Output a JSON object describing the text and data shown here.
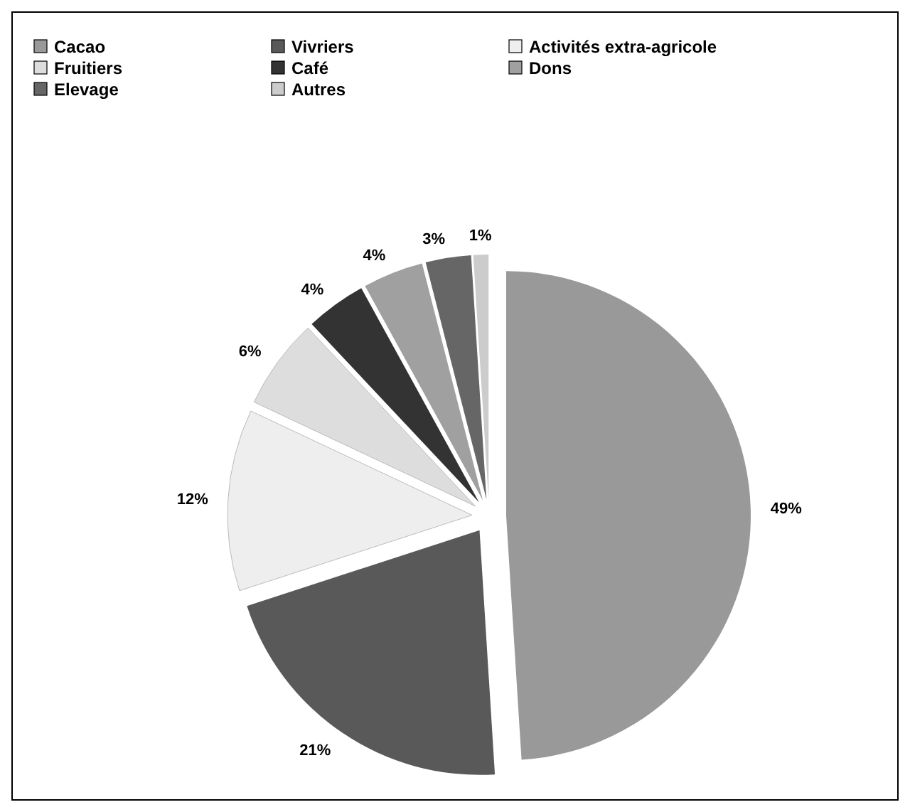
{
  "chart_data": {
    "type": "pie",
    "categories": [
      "Cacao",
      "Vivriers",
      "Activités extra-agricole",
      "Fruitiers",
      "Café",
      "Dons",
      "Elevage",
      "Autres"
    ],
    "values": [
      49,
      21,
      12,
      6,
      4,
      4,
      3,
      1
    ],
    "colors": [
      "#999999",
      "#595959",
      "#eeeeee",
      "#dddddd",
      "#333333",
      "#a0a0a0",
      "#666666",
      "#cccccc"
    ],
    "value_labels": [
      "49%",
      "21%",
      "12%",
      "6%",
      "4%",
      "4%",
      "3%",
      "1%"
    ],
    "legend": "top"
  }
}
